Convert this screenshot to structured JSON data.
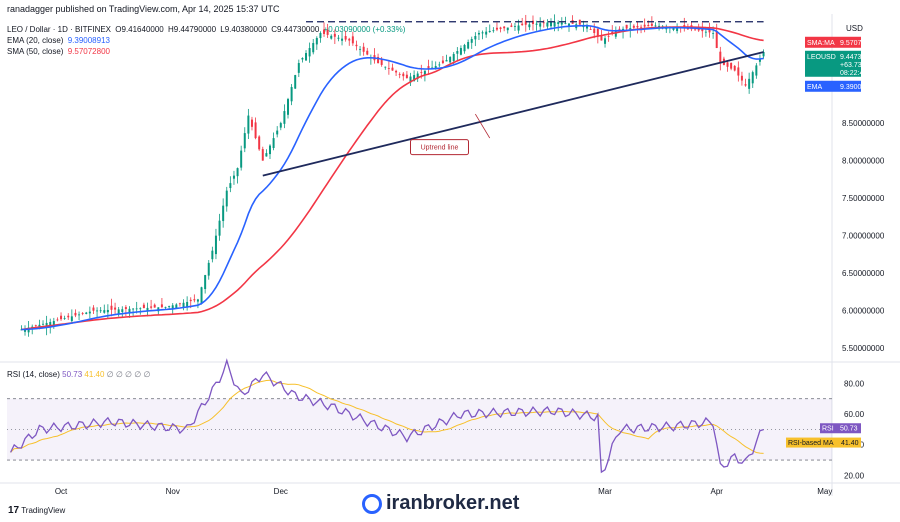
{
  "attribution": "ranadagger published on TradingView.com, Apr 14, 2025 15:37 UTC",
  "currency": "USD",
  "header": {
    "symbol": "LEO / Dollar · 1D · BITFINEX",
    "open": "O9.41640000",
    "high": "H9.44790000",
    "low": "L9.40380000",
    "close": "C9.44730000",
    "change": "+0.03090000 (+0.33%)"
  },
  "ema_legend": {
    "label": "EMA (20, close)",
    "value": "9.39008913",
    "color": "#2962ff"
  },
  "sma_legend": {
    "label": "SMA (50, close)",
    "value": "9.57072800",
    "color": "#f23645"
  },
  "rsi_legend": {
    "label": "RSI (14, close)",
    "value": "50.73",
    "ma_value": "41.40",
    "extra": "∅ ∅ ∅ ∅ ∅"
  },
  "price_tags": [
    {
      "label": "SMA:MA",
      "value": "9.57072800",
      "color": "#f23645"
    },
    {
      "label": "LEOUSD",
      "value": "9.44730000",
      "sub1": "+63.73%",
      "sub2": "08:22:41",
      "color": "#089981"
    },
    {
      "label": "EMA",
      "value": "9.39008913",
      "color": "#2962ff"
    }
  ],
  "rsi_tags": [
    {
      "label": "RSI",
      "value": "50.73",
      "color": "#7e57c2"
    },
    {
      "label": "RSI-based MA",
      "value": "41.40",
      "color": "#f7c02b"
    }
  ],
  "annotation": "Uptrend line",
  "watermark": "iranbroker.net",
  "tv_logo": "TradingView",
  "chart_data": {
    "type": "candlestick",
    "y_ticks": [
      8.5,
      8.0,
      7.5,
      7.0,
      6.5,
      6.0,
      5.5
    ],
    "y_tick_labels": [
      "8.50000000",
      "8.00000000",
      "7.50000000",
      "7.00000000",
      "6.50000000",
      "6.00000000",
      "5.50000000"
    ],
    "ylim": [
      5.45,
      9.9
    ],
    "rsi_ticks": [
      80,
      60,
      40,
      20
    ],
    "rsi_tick_labels": [
      "80.00",
      "60.00",
      "40.00",
      "20.00"
    ],
    "rsi_ylim": [
      17,
      90
    ],
    "rsi_band": [
      30,
      70
    ],
    "x_labels": [
      "Oct",
      "Nov",
      "Dec",
      "Mar",
      "Apr",
      "May"
    ],
    "x_label_dates": [
      "2024-10-01",
      "2024-11-01",
      "2024-12-01",
      "2025-03-01",
      "2025-04-01",
      "2025-05-01"
    ],
    "period_start": "2024-09-17",
    "period_end": "2025-04-14",
    "key_prices": [
      {
        "date": "2024-09-20",
        "price": 5.75
      },
      {
        "date": "2024-10-10",
        "price": 6.0
      },
      {
        "date": "2024-10-30",
        "price": 6.05
      },
      {
        "date": "2024-11-08",
        "price": 6.15
      },
      {
        "date": "2024-11-12",
        "price": 6.8
      },
      {
        "date": "2024-11-16",
        "price": 7.6
      },
      {
        "date": "2024-11-19",
        "price": 7.9
      },
      {
        "date": "2024-11-22",
        "price": 8.6
      },
      {
        "date": "2024-11-26",
        "price": 8.0
      },
      {
        "date": "2024-12-01",
        "price": 8.5
      },
      {
        "date": "2024-12-06",
        "price": 9.3
      },
      {
        "date": "2024-12-12",
        "price": 9.7
      },
      {
        "date": "2024-12-20",
        "price": 9.6
      },
      {
        "date": "2024-12-28",
        "price": 9.3
      },
      {
        "date": "2025-01-05",
        "price": 9.1
      },
      {
        "date": "2025-01-15",
        "price": 9.3
      },
      {
        "date": "2025-01-25",
        "price": 9.7
      },
      {
        "date": "2025-02-05",
        "price": 9.8
      },
      {
        "date": "2025-02-15",
        "price": 9.85
      },
      {
        "date": "2025-02-24",
        "price": 9.8
      },
      {
        "date": "2025-02-28",
        "price": 9.6
      },
      {
        "date": "2025-03-05",
        "price": 9.75
      },
      {
        "date": "2025-03-15",
        "price": 9.8
      },
      {
        "date": "2025-03-25",
        "price": 9.75
      },
      {
        "date": "2025-03-31",
        "price": 9.7
      },
      {
        "date": "2025-04-02",
        "price": 9.3
      },
      {
        "date": "2025-04-06",
        "price": 9.2
      },
      {
        "date": "2025-04-09",
        "price": 9.0
      },
      {
        "date": "2025-04-14",
        "price": 9.447
      }
    ],
    "key_rsi": [
      {
        "date": "2024-09-17",
        "rsi": 35
      },
      {
        "date": "2024-09-25",
        "rsi": 50
      },
      {
        "date": "2024-10-15",
        "rsi": 55
      },
      {
        "date": "2024-11-05",
        "rsi": 50
      },
      {
        "date": "2024-11-12",
        "rsi": 75
      },
      {
        "date": "2024-11-16",
        "rsi": 92
      },
      {
        "date": "2024-11-20",
        "rsi": 72
      },
      {
        "date": "2024-11-26",
        "rsi": 86
      },
      {
        "date": "2024-12-05",
        "rsi": 72
      },
      {
        "date": "2024-12-15",
        "rsi": 65
      },
      {
        "date": "2024-12-25",
        "rsi": 55
      },
      {
        "date": "2025-01-05",
        "rsi": 45
      },
      {
        "date": "2025-01-20",
        "rsi": 60
      },
      {
        "date": "2025-02-15",
        "rsi": 62
      },
      {
        "date": "2025-02-27",
        "rsi": 58
      },
      {
        "date": "2025-02-28",
        "rsi": 20
      },
      {
        "date": "2025-03-05",
        "rsi": 50
      },
      {
        "date": "2025-03-20",
        "rsi": 52
      },
      {
        "date": "2025-03-31",
        "rsi": 55
      },
      {
        "date": "2025-04-02",
        "rsi": 25
      },
      {
        "date": "2025-04-06",
        "rsi": 32
      },
      {
        "date": "2025-04-09",
        "rsi": 28
      },
      {
        "date": "2025-04-14",
        "rsi": 50.73
      }
    ],
    "resistance_price": 9.85,
    "trendline": {
      "start_date": "2024-11-26",
      "start_price": 7.8,
      "end_date": "2025-04-14",
      "end_price": 9.447
    }
  }
}
